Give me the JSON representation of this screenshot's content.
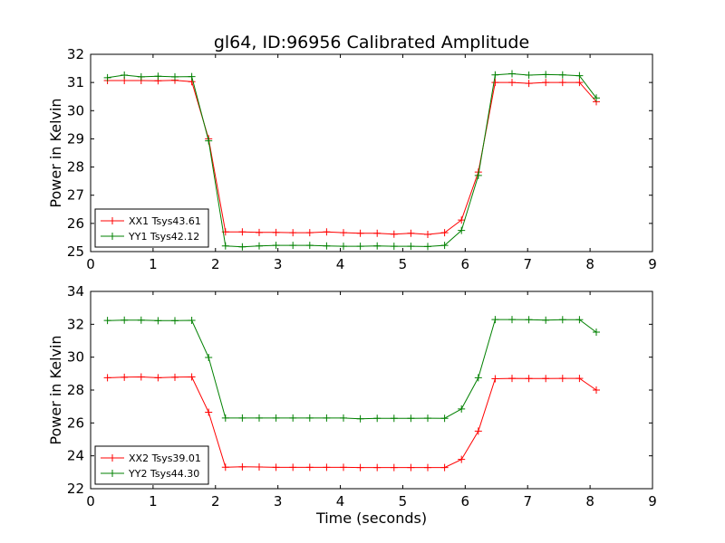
{
  "chart_data": {
    "type": "line",
    "title": "gl64, ID:96956 Calibrated Amplitude",
    "xlabel": "Time (seconds)",
    "x": [
      0.27,
      0.54,
      0.81,
      1.08,
      1.35,
      1.62,
      1.89,
      2.16,
      2.43,
      2.7,
      2.97,
      3.24,
      3.51,
      3.78,
      4.05,
      4.32,
      4.59,
      4.86,
      5.13,
      5.4,
      5.67,
      5.94,
      6.21,
      6.48,
      6.75,
      7.02,
      7.29,
      7.56,
      7.83,
      8.1
    ],
    "panels": [
      {
        "ylabel": "Power in Kelvin",
        "xlim": [
          0,
          9
        ],
        "ylim": [
          25,
          32
        ],
        "xticks": [
          "0",
          "1",
          "2",
          "3",
          "4",
          "5",
          "6",
          "7",
          "8",
          "9"
        ],
        "yticks": [
          "25",
          "26",
          "27",
          "28",
          "29",
          "30",
          "31",
          "32"
        ],
        "legend_position": "lower left",
        "series": [
          {
            "name": "XX1 Tsys43.61",
            "color": "#ff0000",
            "values": [
              31.07,
              31.07,
              31.07,
              31.06,
              31.08,
              31.03,
              29.0,
              25.7,
              25.7,
              25.68,
              25.68,
              25.67,
              25.67,
              25.7,
              25.67,
              25.65,
              25.65,
              25.62,
              25.65,
              25.61,
              25.67,
              26.12,
              27.82,
              31.0,
              31.0,
              30.97,
              31.0,
              31.0,
              31.0,
              30.32
            ]
          },
          {
            "name": "YY1 Tsys42.12",
            "color": "#008000",
            "values": [
              31.17,
              31.26,
              31.2,
              31.22,
              31.2,
              31.21,
              28.93,
              25.2,
              25.17,
              25.2,
              25.22,
              25.22,
              25.22,
              25.2,
              25.19,
              25.19,
              25.2,
              25.19,
              25.19,
              25.18,
              25.22,
              25.75,
              27.7,
              31.27,
              31.31,
              31.26,
              31.28,
              31.27,
              31.24,
              30.45
            ]
          }
        ]
      },
      {
        "ylabel": "Power in Kelvin",
        "xlim": [
          0,
          9
        ],
        "ylim": [
          22,
          34
        ],
        "xticks": [
          "0",
          "1",
          "2",
          "3",
          "4",
          "5",
          "6",
          "7",
          "8",
          "9"
        ],
        "yticks": [
          "22",
          "24",
          "26",
          "28",
          "30",
          "32",
          "34"
        ],
        "legend_position": "lower left",
        "series": [
          {
            "name": "XX2 Tsys39.01",
            "color": "#ff0000",
            "values": [
              28.75,
              28.78,
              28.8,
              28.75,
              28.78,
              28.8,
              26.65,
              23.31,
              23.33,
              23.32,
              23.3,
              23.3,
              23.3,
              23.3,
              23.3,
              23.29,
              23.29,
              23.29,
              23.29,
              23.29,
              23.29,
              23.78,
              25.5,
              28.69,
              28.71,
              28.7,
              28.7,
              28.71,
              28.71,
              28.0
            ]
          },
          {
            "name": "YY2 Tsys44.30",
            "color": "#008000",
            "values": [
              32.23,
              32.25,
              32.25,
              32.22,
              32.22,
              32.24,
              29.98,
              26.3,
              26.3,
              26.3,
              26.3,
              26.3,
              26.3,
              26.3,
              26.3,
              26.25,
              26.28,
              26.28,
              26.28,
              26.29,
              26.28,
              26.85,
              28.75,
              32.29,
              32.29,
              32.28,
              32.25,
              32.28,
              32.28,
              31.52
            ]
          }
        ]
      }
    ]
  }
}
